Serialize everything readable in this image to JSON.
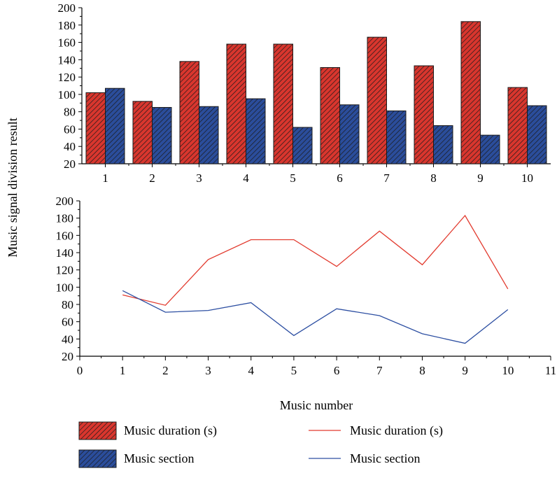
{
  "colors": {
    "duration_bar": "#d9362e",
    "section_bar": "#2b4d9b",
    "duration_line": "#e23b2f",
    "section_line": "#2d4fa2"
  },
  "chart_data": [
    {
      "type": "bar",
      "categories": [
        "1",
        "2",
        "3",
        "4",
        "5",
        "6",
        "7",
        "8",
        "9",
        "10"
      ],
      "series": [
        {
          "name": "Music duration (s)",
          "values": [
            102,
            92,
            138,
            158,
            158,
            131,
            166,
            133,
            184,
            108
          ]
        },
        {
          "name": "Music section",
          "values": [
            107,
            85,
            86,
            95,
            62,
            88,
            81,
            64,
            53,
            87
          ]
        }
      ],
      "ylim": [
        20,
        200
      ],
      "yticks": [
        20,
        40,
        60,
        80,
        100,
        120,
        140,
        160,
        180,
        200
      ],
      "pattern": "hatched"
    },
    {
      "type": "line",
      "series": [
        {
          "name": "Music duration (s)",
          "x": [
            1,
            2,
            3,
            4,
            5,
            6,
            7,
            8,
            9,
            10
          ],
          "values": [
            91,
            79,
            132,
            155,
            155,
            124,
            165,
            126,
            183,
            98
          ]
        },
        {
          "name": "Music section",
          "x": [
            1,
            2,
            3,
            4,
            5,
            6,
            7,
            8,
            9,
            10
          ],
          "values": [
            96,
            71,
            73,
            82,
            44,
            75,
            67,
            46,
            35,
            74
          ]
        }
      ],
      "xlim": [
        0,
        11
      ],
      "xticks": [
        0,
        1,
        2,
        3,
        4,
        5,
        6,
        7,
        8,
        9,
        10,
        11
      ],
      "ylim": [
        20,
        200
      ],
      "yticks": [
        20,
        40,
        60,
        80,
        100,
        120,
        140,
        160,
        180,
        200
      ]
    }
  ],
  "labels": {
    "ylabel": "Music signal division result",
    "xlabel": "Music number"
  },
  "legend": [
    {
      "label": "Music duration (s)",
      "kind": "bar",
      "series": 0
    },
    {
      "label": "Music duration (s)",
      "kind": "line",
      "series": 0
    },
    {
      "label": "Music section",
      "kind": "bar",
      "series": 1
    },
    {
      "label": "Music section",
      "kind": "line",
      "series": 1
    }
  ]
}
